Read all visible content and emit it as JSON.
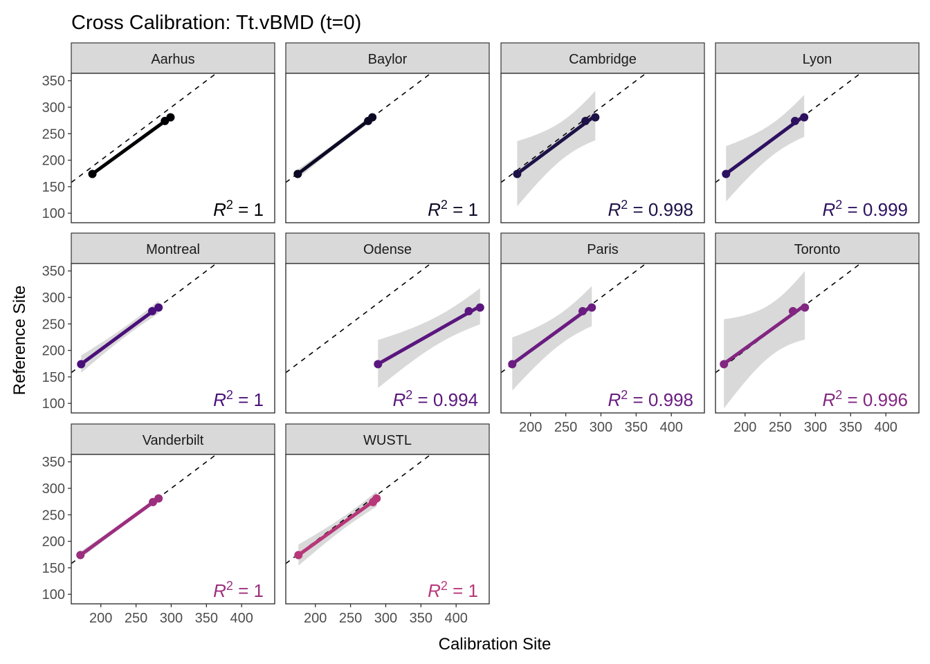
{
  "chart_data": {
    "type": "scatter",
    "title": "Cross Calibration: Tt.vBMD (t=0)",
    "xlabel": "Calibration Site",
    "ylabel": "Reference Site",
    "xlim": [
      158,
      447
    ],
    "ylim": [
      82,
      364
    ],
    "xticks": [
      200,
      250,
      300,
      350,
      400
    ],
    "yticks": [
      100,
      150,
      200,
      250,
      300,
      350
    ],
    "reference_line": "identity (y = x), dashed",
    "grid": false,
    "facets": [
      {
        "name": "Aarhus",
        "color": "#000004",
        "r2": "1",
        "ci": false,
        "points": [
          [
            188,
            174
          ],
          [
            291,
            274
          ],
          [
            299,
            281
          ]
        ]
      },
      {
        "name": "Baylor",
        "color": "#0b0924",
        "r2": "1",
        "ci": true,
        "points": [
          [
            175,
            174
          ],
          [
            275,
            274
          ],
          [
            281,
            281
          ]
        ]
      },
      {
        "name": "Cambridge",
        "color": "#1d1147",
        "r2": "0.998",
        "ci": true,
        "points": [
          [
            181,
            174
          ],
          [
            278,
            274
          ],
          [
            292,
            281
          ]
        ]
      },
      {
        "name": "Lyon",
        "color": "#2d1160",
        "r2": "0.999",
        "ci": true,
        "points": [
          [
            173,
            174
          ],
          [
            271,
            274
          ],
          [
            284,
            281
          ]
        ]
      },
      {
        "name": "Montreal",
        "color": "#4a1079",
        "r2": "1",
        "ci": true,
        "points": [
          [
            172,
            174
          ],
          [
            273,
            274
          ],
          [
            282,
            281
          ]
        ]
      },
      {
        "name": "Odense",
        "color": "#5a167e",
        "r2": "0.994",
        "ci": true,
        "points": [
          [
            289,
            174
          ],
          [
            418,
            274
          ],
          [
            434,
            281
          ]
        ]
      },
      {
        "name": "Paris",
        "color": "#6a1c81",
        "r2": "0.998",
        "ci": true,
        "points": [
          [
            174,
            174
          ],
          [
            274,
            274
          ],
          [
            287,
            281
          ]
        ]
      },
      {
        "name": "Toronto",
        "color": "#822681",
        "r2": "0.996",
        "ci": true,
        "points": [
          [
            170,
            174
          ],
          [
            268,
            274
          ],
          [
            285,
            281
          ]
        ]
      },
      {
        "name": "Vanderbilt",
        "color": "#9c2e7f",
        "r2": "1",
        "ci": true,
        "points": [
          [
            171,
            174
          ],
          [
            274,
            274
          ],
          [
            282,
            281
          ]
        ]
      },
      {
        "name": "WUSTL",
        "color": "#b73779",
        "r2": "1",
        "ci": true,
        "points": [
          [
            176,
            174
          ],
          [
            282,
            274
          ],
          [
            287,
            281
          ]
        ]
      }
    ]
  }
}
